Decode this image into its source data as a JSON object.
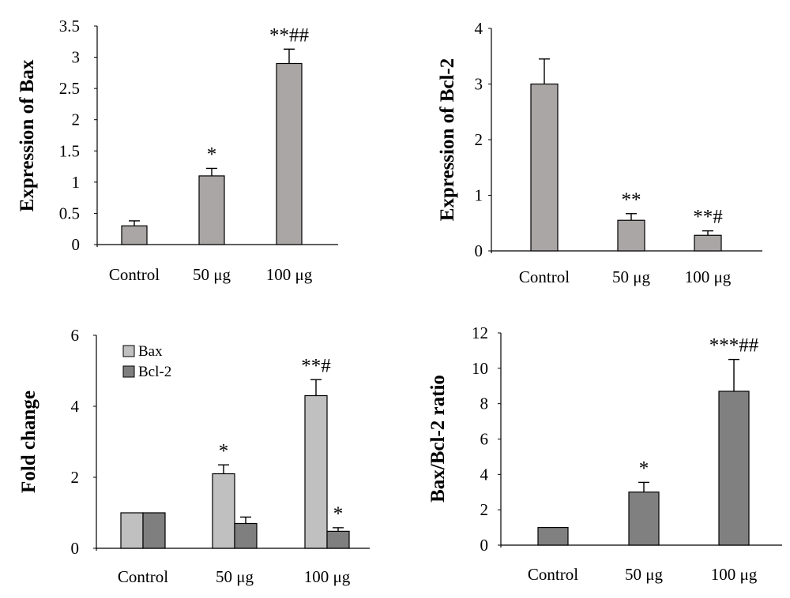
{
  "chart_data": [
    {
      "type": "bar",
      "title": "",
      "xlabel": "",
      "ylabel": "Expression of Bax",
      "ylim": [
        0,
        3.5
      ],
      "yticks": [
        "0",
        "0.5",
        "1",
        "1.5",
        "2",
        "2.5",
        "3",
        "3.5"
      ],
      "categories": [
        "Control",
        "50 μg",
        "100 μg"
      ],
      "series": [
        {
          "values": [
            0.3,
            1.1,
            2.9
          ],
          "errors": [
            0.08,
            0.12,
            0.23
          ],
          "color": "#aaa6a6"
        }
      ],
      "annotations": [
        "",
        "*",
        "**##"
      ],
      "grid": false
    },
    {
      "type": "bar",
      "title": "",
      "xlabel": "",
      "ylabel": "Expression of Bcl-2",
      "ylim": [
        0,
        4
      ],
      "yticks": [
        "0",
        "1",
        "2",
        "3",
        "4"
      ],
      "categories": [
        "Control",
        "50 μg",
        "100 μg"
      ],
      "series": [
        {
          "values": [
            3.0,
            0.55,
            0.28
          ],
          "errors": [
            0.45,
            0.12,
            0.08
          ],
          "color": "#aaa6a6"
        }
      ],
      "annotations": [
        "",
        "**",
        "**#"
      ],
      "grid": false
    },
    {
      "type": "bar",
      "title": "",
      "xlabel": "",
      "ylabel": "Fold change",
      "ylim": [
        0,
        6
      ],
      "yticks": [
        "0",
        "2",
        "4",
        "6"
      ],
      "categories": [
        "Control",
        "50 μg",
        "100 μg"
      ],
      "legend_position": "top-left",
      "series": [
        {
          "name": "Bax",
          "values": [
            1.0,
            2.1,
            4.3
          ],
          "errors": [
            0,
            0.25,
            0.45
          ],
          "color": "#c0c0c0"
        },
        {
          "name": "Bcl-2",
          "values": [
            1.0,
            0.7,
            0.48
          ],
          "errors": [
            0,
            0.18,
            0.1
          ],
          "color": "#7f7f7f"
        }
      ],
      "annotations": [
        [
          "",
          ""
        ],
        [
          "*",
          ""
        ],
        [
          "**#",
          "*"
        ]
      ],
      "grid": false
    },
    {
      "type": "bar",
      "title": "",
      "xlabel": "",
      "ylabel": "Bax/Bcl-2 ratio",
      "ylim": [
        0,
        12
      ],
      "yticks": [
        "0",
        "2",
        "4",
        "6",
        "8",
        "10",
        "12"
      ],
      "categories": [
        "Control",
        "50 μg",
        "100 μg"
      ],
      "series": [
        {
          "values": [
            1.0,
            3.0,
            8.7
          ],
          "errors": [
            0,
            0.55,
            1.8
          ],
          "color": "#808080"
        }
      ],
      "annotations": [
        "",
        "*",
        "***##"
      ],
      "grid": false
    }
  ]
}
